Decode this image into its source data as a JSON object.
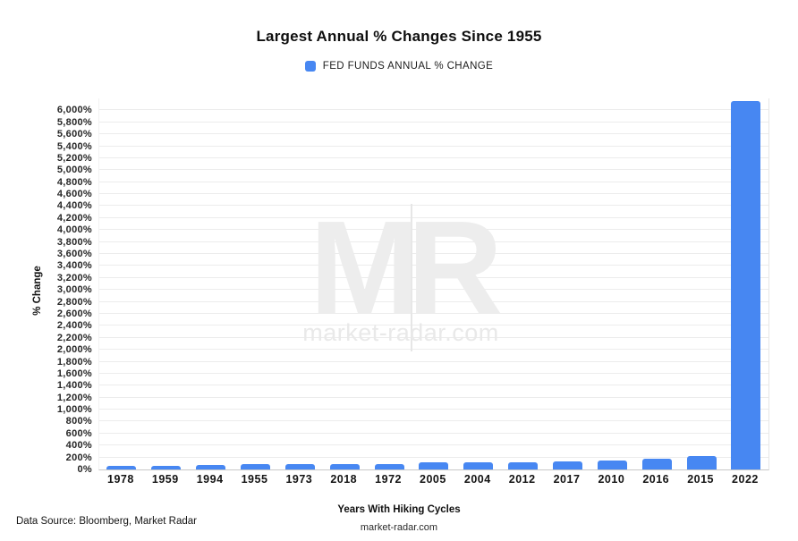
{
  "header": {
    "title": "Largest Annual % Changes Since 1955"
  },
  "legend": {
    "label": "FED FUNDS ANNUAL % CHANGE",
    "swatch_color": "#4787f2"
  },
  "watermark": {
    "logo": "MR",
    "site": "market-radar.com"
  },
  "footer": {
    "data_source": "Data Source: Bloomberg, Market Radar",
    "xaxis_title": "Years With Hiking Cycles",
    "site": "market-radar.com"
  },
  "chart_data": {
    "type": "bar",
    "title": "Largest Annual % Changes Since 1955",
    "ylabel": "% Change",
    "xlabel": "Years With Hiking Cycles",
    "legend_entries": [
      "FED FUNDS ANNUAL % CHANGE"
    ],
    "legend_position": "top",
    "categories": [
      "1978",
      "1959",
      "1994",
      "1955",
      "1973",
      "2018",
      "1972",
      "2005",
      "2004",
      "2012",
      "2017",
      "2010",
      "2016",
      "2015",
      "2022"
    ],
    "values": [
      65,
      67,
      72,
      85,
      87,
      92,
      93,
      115,
      118,
      125,
      140,
      152,
      175,
      230,
      6150
    ],
    "ylim": [
      0,
      6200
    ],
    "ytick_step": 200,
    "ytick_max": 6000,
    "ytick_suffix": "%",
    "grid": true,
    "bar_color": "#4787f2"
  }
}
